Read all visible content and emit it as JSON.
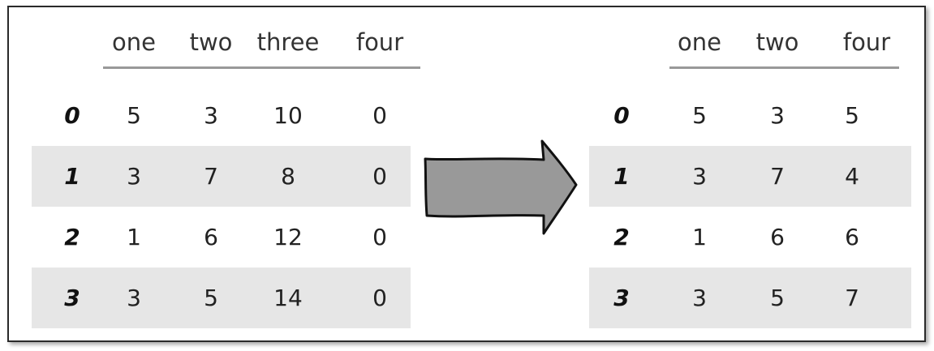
{
  "left_table": {
    "columns": [
      "one",
      "two",
      "three",
      "four"
    ],
    "rows": [
      {
        "index": "0",
        "values": [
          "5",
          "3",
          "10",
          "0"
        ]
      },
      {
        "index": "1",
        "values": [
          "3",
          "7",
          "8",
          "0"
        ]
      },
      {
        "index": "2",
        "values": [
          "1",
          "6",
          "12",
          "0"
        ]
      },
      {
        "index": "3",
        "values": [
          "3",
          "5",
          "14",
          "0"
        ]
      }
    ]
  },
  "right_table": {
    "columns": [
      "one",
      "two",
      "four"
    ],
    "rows": [
      {
        "index": "0",
        "values": [
          "5",
          "3",
          "5"
        ]
      },
      {
        "index": "1",
        "values": [
          "3",
          "7",
          "4"
        ]
      },
      {
        "index": "2",
        "values": [
          "1",
          "6",
          "6"
        ]
      },
      {
        "index": "3",
        "values": [
          "3",
          "5",
          "7"
        ]
      }
    ]
  },
  "colors": {
    "row_shade": "#e6e6e6",
    "header_rule": "#999999",
    "arrow_fill": "#999999",
    "arrow_stroke": "#111111"
  }
}
